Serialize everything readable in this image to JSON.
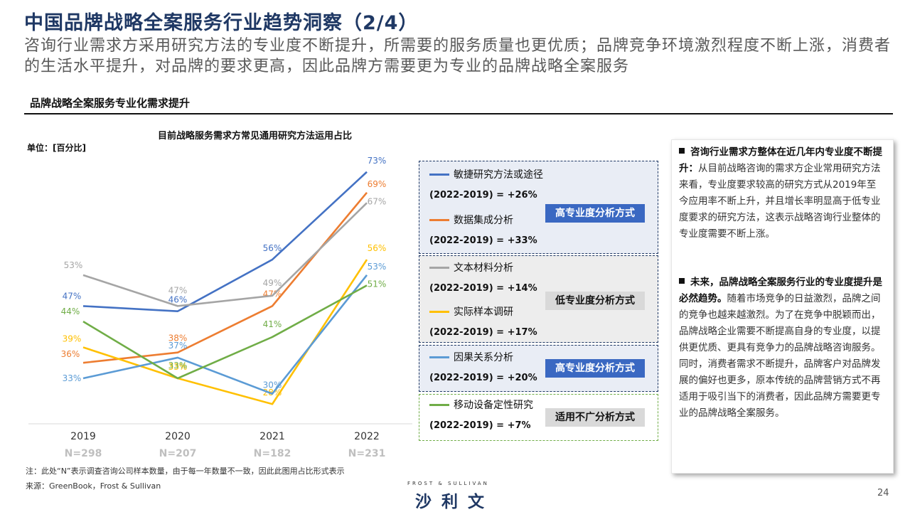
{
  "header": {
    "title": "中国品牌战略全案服务行业趋势洞察（2/4）",
    "subtitle": "咨询行业需求方采用研究方法的专业度不断提升，所需要的服务质量也更优质；品牌竞争环境激烈程度不断上涨，消费者的生活水平提升，对品牌的要求更高，因此品牌方需要更为专业的品牌战略全案服务",
    "section_title": "品牌战略全案服务专业化需求提升"
  },
  "chart_data": {
    "type": "line",
    "title": "目前战略服务需求方常见通用研究方法运用占比",
    "unit": "单位：[百分比]",
    "categories": [
      "2019",
      "2020",
      "2021",
      "2022"
    ],
    "sample_sizes": [
      "N=298",
      "N=207",
      "N=182",
      "N=231"
    ],
    "value_suffix": "%",
    "ylim": [
      25,
      76
    ],
    "grid": false,
    "legend_position": "right",
    "series": [
      {
        "name": "敏捷研究方法或途径",
        "color": "#4472c4",
        "values": [
          47,
          46,
          56,
          73
        ]
      },
      {
        "name": "数据集成分析",
        "color": "#ed7d31",
        "values": [
          36,
          38,
          47,
          69
        ]
      },
      {
        "name": "文本材料分析",
        "color": "#a5a5a5",
        "values": [
          53,
          47,
          49,
          67
        ]
      },
      {
        "name": "实际样本调研",
        "color": "#ffc000",
        "values": [
          39,
          33,
          28,
          56
        ]
      },
      {
        "name": "因果关系分析",
        "color": "#5b9bd5",
        "values": [
          33,
          37,
          30,
          53
        ]
      },
      {
        "name": "移动设备定性研究",
        "color": "#70ad47",
        "values": [
          44,
          33,
          41,
          51
        ]
      }
    ],
    "annotations": [
      {
        "label": "(2022-2019) = +26%"
      },
      {
        "label": "(2022-2019) = +33%"
      },
      {
        "label": "(2022-2019) = +14%"
      },
      {
        "label": "(2022-2019) = +17%"
      },
      {
        "label": "(2022-2019) = +20%"
      },
      {
        "label": "(2022-2019) = +7%"
      }
    ],
    "groups": [
      "高专业度分析方式",
      "低专业度分析方式",
      "高专业度分析方式",
      "适用不广分析方式"
    ]
  },
  "right_panel": {
    "point1_bold": "咨询行业需求方整体在近几年内专业度不断提升：",
    "point1_text": "从目前战略咨询的需求方企业常用研究方法来看，专业度要求较高的研究方式从2019年至今应用率不断上升，并且增长率明显高于低专业度要求的研究方法，这表示战略咨询行业整体的专业度需要不断上涨。",
    "point2_bold": "未来，品牌战略全案服务行业的专业度提升是必然趋势。",
    "point2_text": "随着市场竞争的日益激烈，品牌之间的竞争也越来越激烈。为了在竞争中脱颖而出，品牌战略企业需要不断提高自身的专业度，以提供更优质、更具有竞争力的品牌战略咨询服务。同时，消费者需求不断提升，品牌客户对品牌发展的偏好也更多，原本传统的品牌营销方式不再适用于吸引当下的消费者，因此品牌方需要更专业的品牌战略全案服务。"
  },
  "footer": {
    "note": "注：此处“N”表示调查咨询公司样本数量，由于每一年数量不一致，因此此图用占比形式表示",
    "source": "来源：GreenBook，Frost & Sullivan",
    "logo_small": "FROST & SULLIVAN",
    "logo_big": "沙利文",
    "page_number": "24"
  }
}
